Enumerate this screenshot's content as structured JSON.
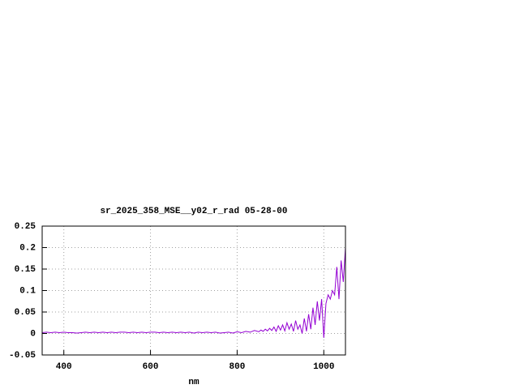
{
  "chart_data": {
    "type": "line",
    "title": "sr_2025_358_MSE__y02_r_rad 05-28-00",
    "xlabel": "nm",
    "x": [
      350,
      360,
      370,
      380,
      390,
      400,
      410,
      420,
      430,
      440,
      450,
      460,
      470,
      480,
      490,
      500,
      510,
      520,
      530,
      540,
      550,
      560,
      570,
      580,
      590,
      600,
      610,
      620,
      630,
      640,
      650,
      660,
      670,
      680,
      690,
      700,
      710,
      720,
      730,
      740,
      750,
      760,
      770,
      780,
      790,
      800,
      810,
      820,
      830,
      840,
      850,
      855,
      860,
      865,
      870,
      875,
      880,
      885,
      890,
      895,
      900,
      905,
      910,
      915,
      920,
      925,
      930,
      935,
      940,
      945,
      950,
      955,
      960,
      965,
      970,
      975,
      980,
      985,
      990,
      995,
      1000,
      1005,
      1010,
      1015,
      1020,
      1025,
      1030,
      1035,
      1040,
      1045,
      1050
    ],
    "values": [
      0.002,
      0.003,
      0.002,
      0.003,
      0.002,
      0.003,
      0.002,
      0.002,
      0.001,
      0.002,
      0.003,
      0.002,
      0.003,
      0.002,
      0.003,
      0.002,
      0.003,
      0.002,
      0.003,
      0.003,
      0.002,
      0.003,
      0.002,
      0.003,
      0.002,
      0.003,
      0.003,
      0.002,
      0.003,
      0.002,
      0.003,
      0.002,
      0.003,
      0.002,
      0.003,
      0.001,
      0.003,
      0.002,
      0.003,
      0.002,
      0.003,
      0.001,
      0.002,
      0.003,
      0.001,
      0.004,
      0.002,
      0.005,
      0.003,
      0.007,
      0.004,
      0.008,
      0.005,
      0.01,
      0.006,
      0.012,
      0.007,
      0.015,
      0.005,
      0.018,
      0.008,
      0.02,
      0.006,
      0.025,
      0.01,
      0.022,
      0.005,
      0.03,
      0.01,
      0.02,
      0.0,
      0.035,
      0.005,
      0.045,
      0.01,
      0.06,
      0.02,
      0.075,
      0.03,
      0.08,
      -0.01,
      0.07,
      0.09,
      0.08,
      0.1,
      0.09,
      0.155,
      0.08,
      0.17,
      0.12,
      0.2
    ],
    "color": "#9400d3",
    "xlim": [
      350,
      1050
    ],
    "xticks": [
      400,
      600,
      800,
      1000
    ],
    "ylim": [
      -0.05,
      0.25
    ],
    "yticks": [
      -0.05,
      0,
      0.05,
      0.1,
      0.15,
      0.2,
      0.25
    ],
    "grid": true
  }
}
